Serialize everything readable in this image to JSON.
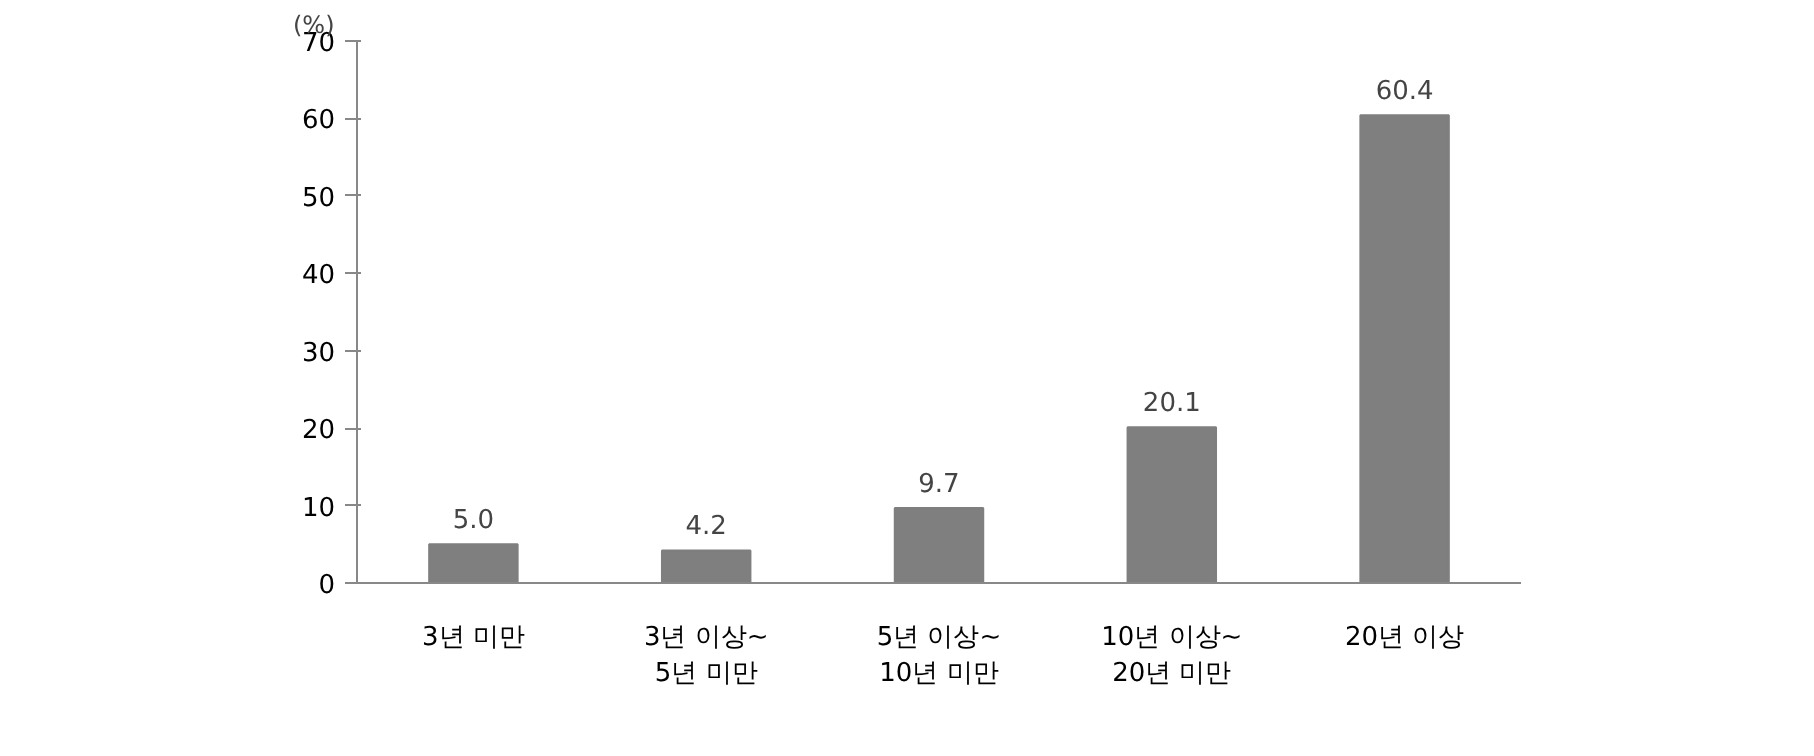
{
  "chart_data": {
    "type": "bar",
    "ylabel": "(%)",
    "categories": [
      "3년 미만",
      "3년 이상~\n5년 미만",
      "5년 이상~\n10년 미만",
      "10년 이상~\n20년 미만",
      "20년 이상"
    ],
    "values": [
      5.0,
      4.2,
      9.7,
      20.1,
      60.4
    ],
    "value_labels": [
      "5.0",
      "4.2",
      "9.7",
      "20.1",
      "60.4"
    ],
    "color": "#7f7f7f",
    "ylim": [
      0,
      70
    ],
    "yticks": [
      0,
      10,
      20,
      30,
      40,
      50,
      60,
      70
    ],
    "grid": false
  }
}
